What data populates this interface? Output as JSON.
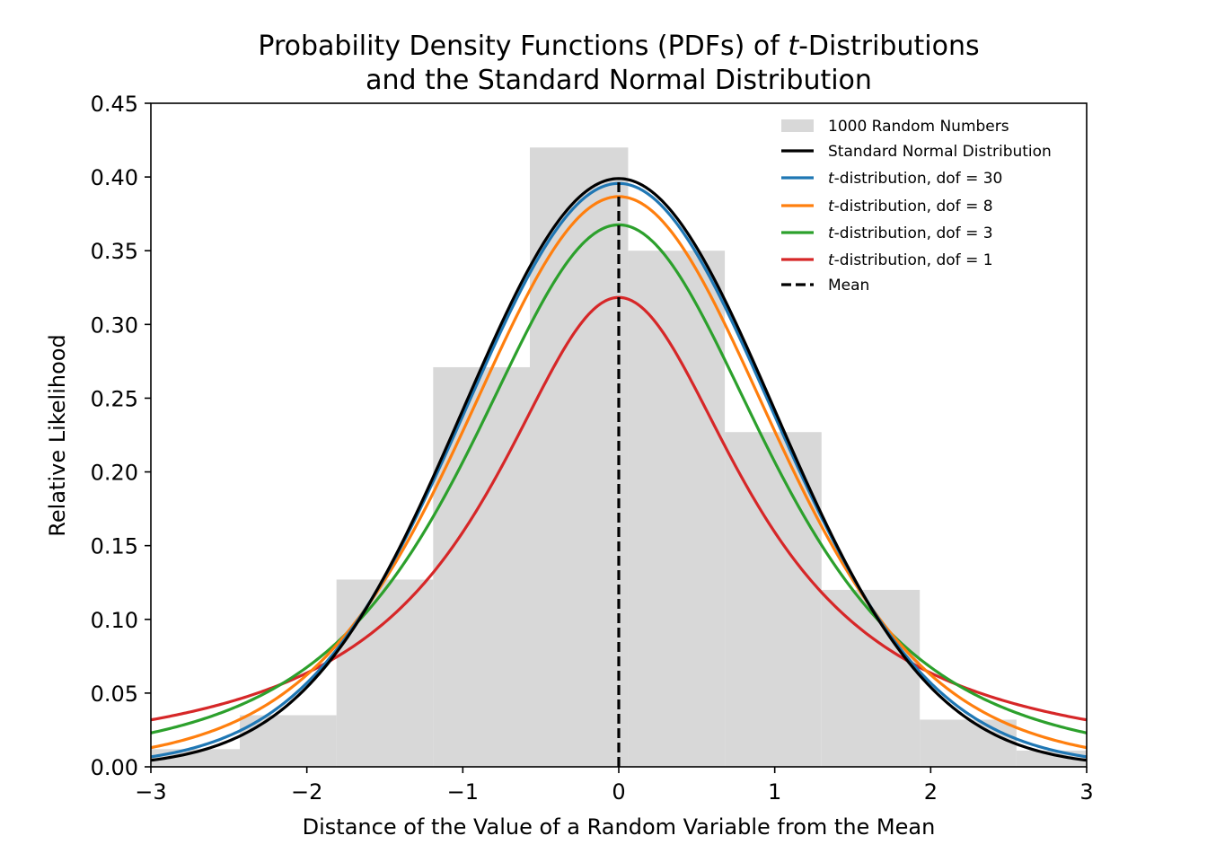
{
  "chart_data": {
    "type": "line",
    "title_line1_prefix": "Probability Density Functions (PDFs) of ",
    "title_line1_italic": "t",
    "title_line1_suffix": "-Distributions",
    "title_line2": "and the Standard Normal Distribution",
    "xlabel": "Distance of the Value of a Random Variable from the Mean",
    "ylabel": "Relative Likelihood",
    "xlim": [
      -3,
      3
    ],
    "ylim": [
      0,
      0.45
    ],
    "x_ticks": [
      -3,
      -2,
      -1,
      0,
      1,
      2,
      3
    ],
    "x_tick_labels": [
      "−3",
      "−2",
      "−1",
      "0",
      "1",
      "2",
      "3"
    ],
    "y_ticks": [
      0,
      0.05,
      0.1,
      0.15,
      0.2,
      0.25,
      0.3,
      0.35,
      0.4,
      0.45
    ],
    "y_tick_labels": [
      "0.00",
      "0.05",
      "0.10",
      "0.15",
      "0.20",
      "0.25",
      "0.30",
      "0.35",
      "0.40",
      "0.45"
    ],
    "histogram": {
      "name": "1000 Random Numbers",
      "color": "#d8d8d8",
      "bins": [
        {
          "x0": -3.0,
          "x1": -2.43,
          "value": 0.012
        },
        {
          "x0": -2.43,
          "x1": -1.81,
          "value": 0.035
        },
        {
          "x0": -1.81,
          "x1": -1.19,
          "value": 0.127
        },
        {
          "x0": -1.19,
          "x1": -0.57,
          "value": 0.271
        },
        {
          "x0": -0.57,
          "x1": 0.06,
          "value": 0.42
        },
        {
          "x0": 0.06,
          "x1": 0.68,
          "value": 0.35
        },
        {
          "x0": 0.68,
          "x1": 1.3,
          "value": 0.227
        },
        {
          "x0": 1.3,
          "x1": 1.93,
          "value": 0.12
        },
        {
          "x0": 1.93,
          "x1": 2.55,
          "value": 0.032
        },
        {
          "x0": 2.55,
          "x1": 3.0,
          "value": 0.011
        }
      ]
    },
    "series": [
      {
        "name": "Standard Normal Distribution",
        "color": "#000000",
        "kind": "normal",
        "dof": null
      },
      {
        "name_italic": "t",
        "name_suffix": "-distribution, dof = 30",
        "color": "#1f77b4",
        "kind": "t",
        "dof": 30
      },
      {
        "name_italic": "t",
        "name_suffix": "-distribution, dof = 8",
        "color": "#ff7f0e",
        "kind": "t",
        "dof": 8
      },
      {
        "name_italic": "t",
        "name_suffix": "-distribution, dof = 3",
        "color": "#2ca02c",
        "kind": "t",
        "dof": 3
      },
      {
        "name_italic": "t",
        "name_suffix": "-distribution, dof = 1",
        "color": "#d62728",
        "kind": "t",
        "dof": 1
      }
    ],
    "mean": {
      "name": "Mean",
      "x": 0,
      "color": "#000000",
      "style": "dashed"
    },
    "legend_position": "upper right",
    "grid": false
  }
}
